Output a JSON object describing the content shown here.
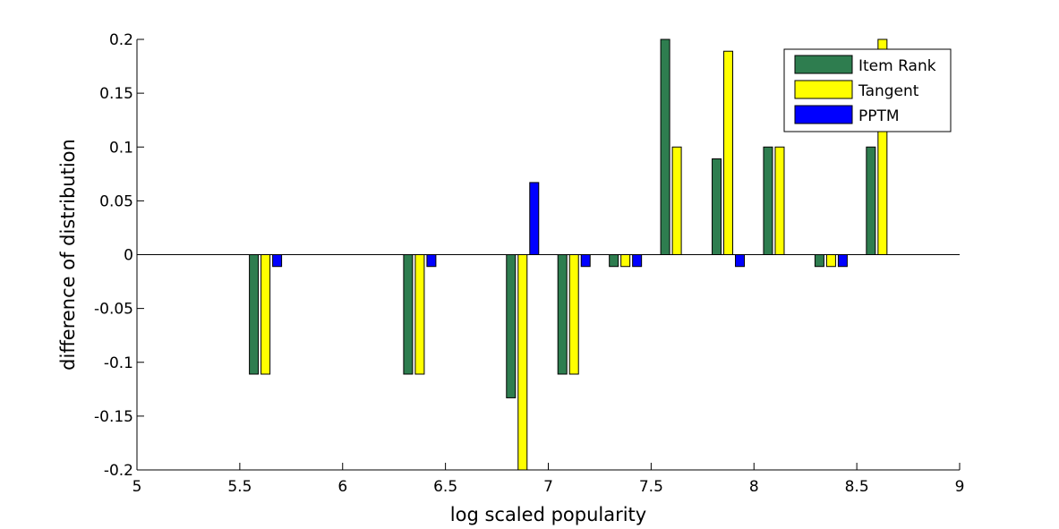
{
  "chart_data": {
    "type": "bar",
    "title": "",
    "xlabel": "log scaled popularity",
    "ylabel": "difference of distribution",
    "xlim": [
      5,
      9
    ],
    "ylim": [
      -0.2,
      0.2
    ],
    "xticks": [
      5,
      5.5,
      6,
      6.5,
      7,
      7.5,
      8,
      8.5,
      9
    ],
    "xtick_labels": [
      "5",
      "5.5",
      "6",
      "6.5",
      "7",
      "7.5",
      "8",
      "8.5",
      "9"
    ],
    "yticks": [
      -0.2,
      -0.15,
      -0.1,
      -0.05,
      0,
      0.05,
      0.1,
      0.15,
      0.2
    ],
    "ytick_labels": [
      "-0.2",
      "-0.15",
      "-0.1",
      "-0.05",
      "0",
      "0.05",
      "0.1",
      "0.15",
      "0.2"
    ],
    "grid": false,
    "legend_position": "top-right",
    "x": [
      5.625,
      6.375,
      6.875,
      7.125,
      7.375,
      7.625,
      7.875,
      8.125,
      8.375,
      8.625
    ],
    "series": [
      {
        "name": "Item Rank",
        "color": "#2e7d4f",
        "values": [
          -0.111,
          -0.111,
          -0.133,
          -0.111,
          -0.011,
          0.2,
          0.089,
          0.1,
          -0.011,
          0.1
        ]
      },
      {
        "name": "Tangent",
        "color": "#ffff00",
        "values": [
          -0.111,
          -0.111,
          -0.2,
          -0.111,
          -0.011,
          0.1,
          0.189,
          0.1,
          -0.011,
          0.2
        ]
      },
      {
        "name": "PPTM",
        "color": "#0000ff",
        "values": [
          -0.011,
          -0.011,
          0.067,
          -0.011,
          -0.011,
          0,
          -0.011,
          0,
          -0.011,
          0
        ]
      }
    ]
  }
}
